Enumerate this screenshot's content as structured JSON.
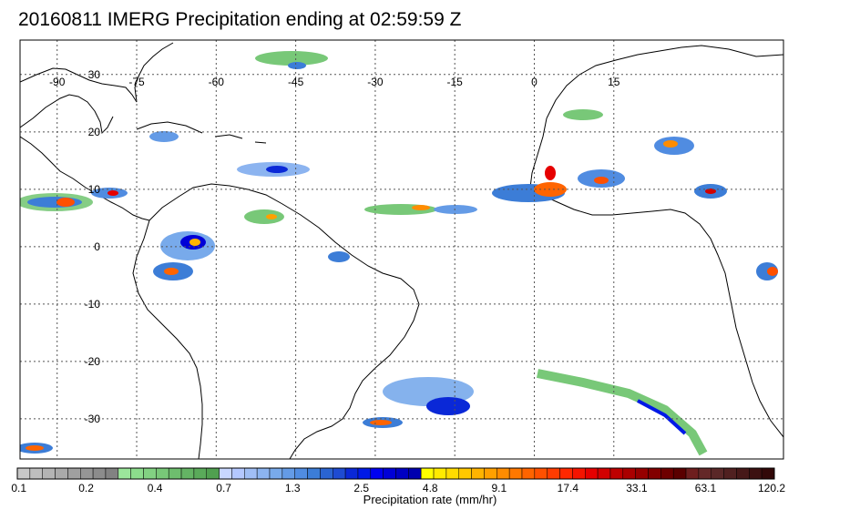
{
  "title": "20160811 IMERG Precipitation ending at 02:59:59 Z",
  "map": {
    "lon_range": [
      -97,
      47
    ],
    "lat_range": [
      -37,
      36
    ],
    "lon_grid": [
      -90,
      -75,
      -60,
      -45,
      -30,
      -15,
      0,
      15
    ],
    "lat_grid": [
      30,
      20,
      10,
      0,
      -10,
      -20,
      -30
    ],
    "lon_labels": [
      "-90",
      "-75",
      "-60",
      "-45",
      "-30",
      "-15",
      "0",
      "15"
    ],
    "lat_labels": [
      "30",
      "20",
      "10",
      "0",
      "-10",
      "-20",
      "-30"
    ],
    "grid": true
  },
  "colorbar": {
    "title": "Precipitation rate (mm/hr)",
    "tick_labels": [
      "0.1",
      "0.2",
      "0.4",
      "0.7",
      "1.3",
      "2.5",
      "4.8",
      "9.1",
      "17.4",
      "33.1",
      "63.1",
      "120.2"
    ],
    "colors": [
      "#c8c8c8",
      "#bebebe",
      "#b4b4b4",
      "#aaaaaa",
      "#a0a0a0",
      "#969696",
      "#8c8c8c",
      "#828282",
      "#9be69b",
      "#8cdc8c",
      "#82d282",
      "#78c878",
      "#6ebe6e",
      "#64b464",
      "#5aaa5a",
      "#50a050",
      "#c8d7ff",
      "#b4c8ff",
      "#a0bef5",
      "#8cb4f0",
      "#78aaeb",
      "#649be6",
      "#508ce1",
      "#3c7dd7",
      "#2a64d2",
      "#1e4bd2",
      "#0a28d7",
      "#0019e6",
      "#0000f0",
      "#0000d7",
      "#0000c3",
      "#0000af",
      "#ffff00",
      "#ffeb00",
      "#ffdc00",
      "#ffc800",
      "#ffb400",
      "#ffa000",
      "#ff8c00",
      "#ff7800",
      "#ff6400",
      "#ff5000",
      "#ff3c00",
      "#ff2800",
      "#f51400",
      "#e60000",
      "#d20000",
      "#be0000",
      "#aa0000",
      "#960000",
      "#820000",
      "#6e0000",
      "#5a0000",
      "#6e1e1e",
      "#642828",
      "#5a2828",
      "#502020",
      "#461818",
      "#3c1010",
      "#320808"
    ]
  }
}
